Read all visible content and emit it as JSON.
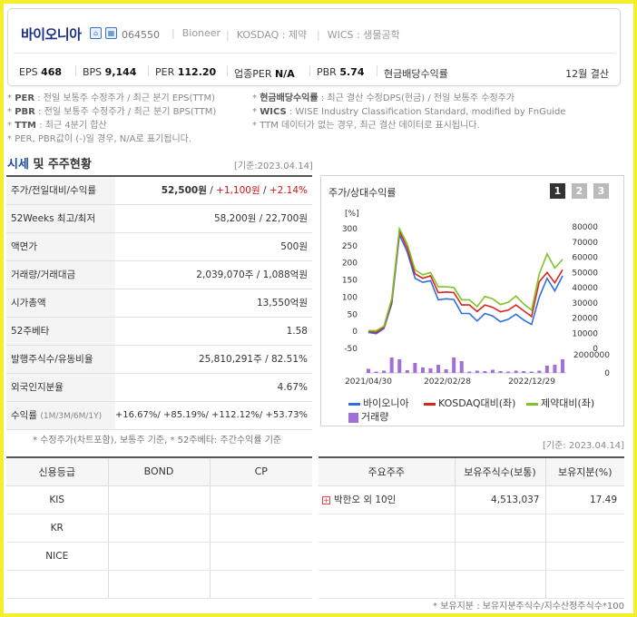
{
  "company": {
    "name": "바이오니아",
    "code": "064550",
    "eng_name": "Bioneer",
    "market": "KOSDAQ : 제약",
    "wics": "WICS : 생물공학",
    "icons": [
      "house-icon",
      "building-icon"
    ]
  },
  "metrics": {
    "eps_label": "EPS",
    "eps": "468",
    "bps_label": "BPS",
    "bps": "9,144",
    "per_label": "PER",
    "per": "112.20",
    "sector_per_label": "업종PER",
    "sector_per": "N/A",
    "pbr_label": "PBR",
    "pbr": "5.74",
    "dividend_label": "현금배당수익률",
    "settlement": "12월 결산"
  },
  "notes": {
    "left": [
      {
        "key": "PER",
        "text": " : 전일 보통주 수정주가 / 최근 분기 EPS(TTM)"
      },
      {
        "key": "PBR",
        "text": " : 전일 보통주 수정주가 / 최근 분기 BPS(TTM)"
      },
      {
        "key": "TTM",
        "text": " : 최근 4분기 합산"
      },
      {
        "key": "",
        "text": "PER, PBR값이 (-)일 경우, N/A로 표기됩니다."
      }
    ],
    "right": [
      {
        "key": "현금배당수익률",
        "text": " : 최근 결산 수정DPS(현금) / 전일 보통주 수정주가"
      },
      {
        "key": "WICS",
        "text": " : WISE Industry Classification Standard, modified by FnGuide"
      },
      {
        "key": "",
        "text": "TTM 데이터가 없는 경우, 최근 결산 데이터로 표시됩니다."
      }
    ]
  },
  "section": {
    "title_hl": "시세",
    "title_rest": " 및 주주현황",
    "base_date": "[기준:2023.04.14]"
  },
  "price_table": [
    {
      "label": "주가/전일대비/수익률",
      "price": "52,500원",
      "change": "+1,100원",
      "pct": "+2.14%"
    },
    {
      "label": "52Weeks 최고/최저",
      "value": "58,200원 / 22,700원"
    },
    {
      "label": "액면가",
      "value": "500원"
    },
    {
      "label": "거래량/거래대금",
      "value": "2,039,070주 / 1,088억원"
    },
    {
      "label": "시가총액",
      "value": "13,550억원"
    },
    {
      "label": "52주베타",
      "value": "1.58"
    },
    {
      "label": "발행주식수/유동비율",
      "value": "25,810,291주 / 82.51%"
    },
    {
      "label": "외국인지분율",
      "value": "4.67%"
    },
    {
      "label": "수익률",
      "sub": "(1M/3M/6M/1Y)",
      "returns": [
        "+16.67%",
        "+85.19%",
        "+112.12%",
        "+53.73%"
      ]
    }
  ],
  "price_footnote": "* 수정주가(차트포함), 보통주 기준, * 52주베타: 주간수익률 기준",
  "chart": {
    "title": "주가/상대수익률",
    "pages": [
      "1",
      "2",
      "3"
    ],
    "active_page": "1"
  },
  "chart_data": {
    "type": "line",
    "x_tick_labels": [
      "2021/04/30",
      "2022/02/28",
      "2022/12/29"
    ],
    "y_left_label": "[%]",
    "y_left_ticks": [
      "300",
      "250",
      "200",
      "150",
      "100",
      "50",
      "0",
      "-50"
    ],
    "y_left_range": [
      -50,
      300
    ],
    "y_right_ticks": [
      "80000",
      "70000",
      "60000",
      "50000",
      "40000",
      "30000",
      "20000",
      "10000",
      "0"
    ],
    "y_right_range": [
      0,
      80000
    ],
    "volume_ticks": [
      "2000000",
      "0"
    ],
    "volume_range": [
      0,
      2500000
    ],
    "series": [
      {
        "name": "바이오니아",
        "color": "#2f6ee0",
        "axis": "left",
        "values": [
          -3,
          -7,
          8,
          80,
          282,
          232,
          155,
          143,
          148,
          92,
          95,
          93,
          52,
          52,
          30,
          52,
          45,
          28,
          35,
          50,
          33,
          20,
          100,
          155,
          118,
          162
        ]
      },
      {
        "name": "KOSDAQ대비(좌)",
        "color": "#d9261c",
        "axis": "left",
        "values": [
          0,
          -3,
          12,
          87,
          293,
          243,
          168,
          155,
          162,
          113,
          115,
          113,
          77,
          77,
          58,
          77,
          70,
          57,
          62,
          77,
          60,
          43,
          145,
          172,
          142,
          180
        ]
      },
      {
        "name": "제약대비(좌)",
        "color": "#7fc32a",
        "axis": "left",
        "values": [
          2,
          2,
          15,
          95,
          300,
          255,
          180,
          165,
          172,
          130,
          130,
          128,
          92,
          92,
          72,
          102,
          95,
          78,
          85,
          103,
          80,
          62,
          168,
          226,
          185,
          210
        ]
      },
      {
        "name": "거래량",
        "color": "#a26ed8",
        "axis": "volume",
        "values": [
          450000,
          150000,
          250000,
          1700000,
          1500000,
          300000,
          1100000,
          600000,
          500000,
          900000,
          400000,
          1700000,
          1300000,
          150000,
          250000,
          200000,
          350000,
          200000,
          150000,
          250000,
          200000,
          150000,
          250000,
          800000,
          900000,
          1500000
        ]
      }
    ]
  },
  "credit": {
    "headers": [
      "신용등급",
      "BOND",
      "CP"
    ],
    "rows": [
      "KIS",
      "KR",
      "NICE",
      ""
    ]
  },
  "shareholders": {
    "base_date": "[기준: 2023.04.14]",
    "headers": [
      "주요주주",
      "보유주식수(보통)",
      "보유지분(%)"
    ],
    "rows": [
      {
        "name": "박한오 외 10인",
        "shares": "4,513,037",
        "pct": "17.49"
      }
    ],
    "footnote": "* 보유지분 : 보유지분주식수/지수산정주식수*100"
  }
}
